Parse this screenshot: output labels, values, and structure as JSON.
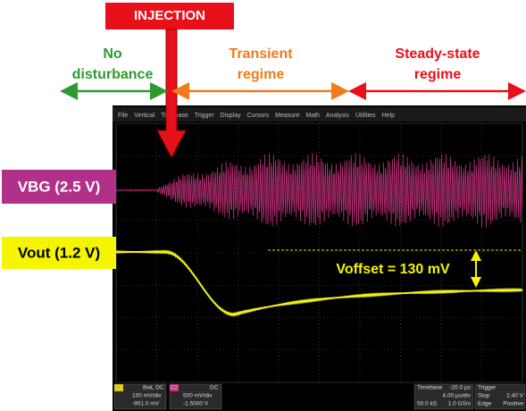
{
  "annotations": {
    "injection": "INJECTION",
    "no_disturbance": [
      "No",
      "disturbance"
    ],
    "transient": [
      "Transient",
      "regime"
    ],
    "steady_state": [
      "Steady-state",
      "regime"
    ],
    "voffset": "Voffset = 130 mV"
  },
  "labels": {
    "vbg": "VBG (2.5 V)",
    "vout": "Vout (1.2 V)"
  },
  "menu": [
    "File",
    "Vertical",
    "Timebase",
    "Trigger",
    "Display",
    "Cursors",
    "Measure",
    "Math",
    "Analysis",
    "Utilities",
    "Help"
  ],
  "status": {
    "c1": {
      "name": "C1",
      "coupling": "BwL DC",
      "scale": "100 mV/div",
      "offset": "-901.0 mV"
    },
    "c2": {
      "name": "C2",
      "coupling": "DC",
      "scale": "500 mV/div",
      "offset": "-1.5000 V"
    },
    "timebase": {
      "title": "Timebase",
      "delay": "-20.0 µs",
      "div": "4.00 µs/div",
      "samples": "50.0 kS",
      "rate": "1.0 GS/s"
    },
    "trigger": {
      "title": "Trigger",
      "mode": "Stop",
      "type": "Edge",
      "slope": "Positive",
      "level": "2.40 V"
    }
  }
}
